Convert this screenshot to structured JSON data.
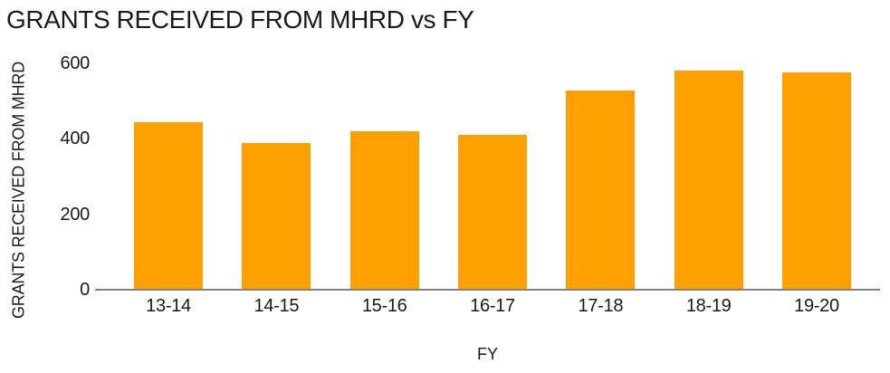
{
  "chart_data": {
    "type": "bar",
    "title": "GRANTS RECEIVED FROM MHRD vs FY",
    "xlabel": "FY",
    "ylabel": "GRANTS RECEIVED FROM MHRD",
    "categories": [
      "13-14",
      "14-15",
      "15-16",
      "16-17",
      "17-18",
      "18-19",
      "19-20"
    ],
    "values": [
      445,
      390,
      420,
      410,
      528,
      580,
      577
    ],
    "ylim": [
      0,
      600
    ],
    "yticks": [
      0,
      200,
      400,
      600
    ],
    "grid": false,
    "legend": "none",
    "colors": {
      "bar": "#FFA000",
      "axis_line": "#808080",
      "text": "#1A1A1A",
      "background": "#FFFFFF"
    }
  }
}
